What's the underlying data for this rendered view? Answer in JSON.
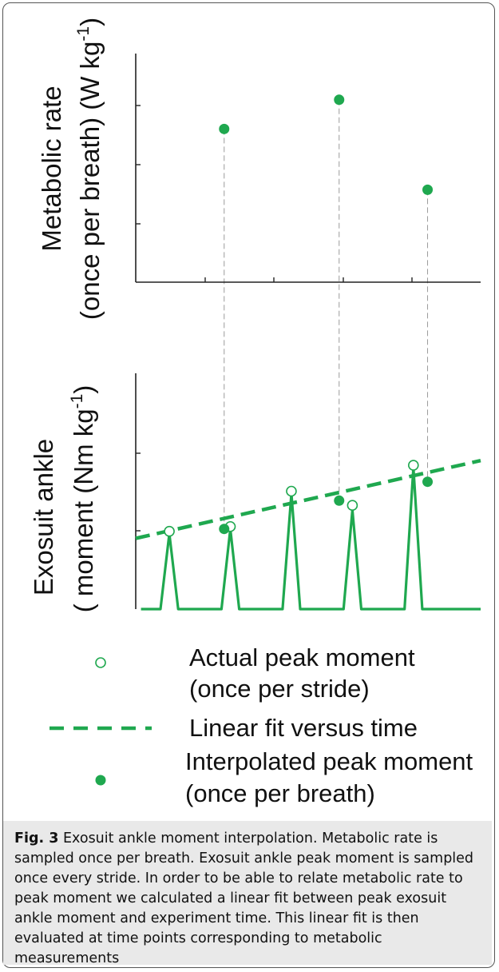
{
  "chart_data": [
    {
      "type": "scatter",
      "ylabel_line1": "Metabolic rate",
      "ylabel_line2": "(once per breath) (W kg",
      "ylabel_sup": "-1",
      "ylabel_close": ")",
      "series": [
        {
          "name": "Interpolated peak moment",
          "x": [
            1.0,
            2.3,
            3.3
          ],
          "y": [
            2.25,
            2.85,
            1.0
          ]
        }
      ],
      "xlim": [
        0,
        3.9
      ],
      "ylim": [
        -0.9,
        3.8
      ],
      "grid": false
    },
    {
      "type": "line",
      "ylabel_line1": "Exosuit ankle",
      "ylabel_line2": "( moment (Nm kg",
      "ylabel_sup": "-1",
      "ylabel_close": ")",
      "xlim": [
        0,
        3.9
      ],
      "ylim": [
        0,
        1.0
      ],
      "moment_peaks": [
        {
          "x": 0.38,
          "y": 0.32
        },
        {
          "x": 1.07,
          "y": 0.34
        },
        {
          "x": 1.76,
          "y": 0.49
        },
        {
          "x": 2.45,
          "y": 0.42
        },
        {
          "x": 3.14,
          "y": 0.6
        }
      ],
      "actual_peaks": [
        {
          "x": 0.38,
          "y": 0.33
        },
        {
          "x": 1.07,
          "y": 0.35
        },
        {
          "x": 1.76,
          "y": 0.5
        },
        {
          "x": 2.45,
          "y": 0.44
        },
        {
          "x": 3.14,
          "y": 0.61
        }
      ],
      "linear_fit": {
        "x": [
          0.0,
          3.9
        ],
        "y": [
          0.3,
          0.63
        ]
      },
      "interpolated": {
        "x": [
          1.0,
          2.3,
          3.3
        ],
        "y": [
          0.34,
          0.46,
          0.54
        ]
      }
    }
  ],
  "legend": {
    "actual_line1": "Actual peak moment",
    "actual_line2": "(once per stride)",
    "fit": "Linear fit versus time",
    "interp_line1": "Interpolated peak moment",
    "interp_line2": "(once per breath)"
  },
  "caption": {
    "label": "Fig. 3",
    "text": "Exosuit ankle moment interpolation. Metabolic rate is sampled once per breath. Exosuit ankle peak moment is sampled once every stride. In order to be able to relate metabolic rate to peak moment we calculated a linear fit between peak exosuit ankle moment and experiment time. This linear fit is then evaluated at time points corresponding to metabolic measurements"
  },
  "colors": {
    "green": "#1fa84f",
    "axis": "#222222",
    "connector": "#9a9a9a"
  }
}
